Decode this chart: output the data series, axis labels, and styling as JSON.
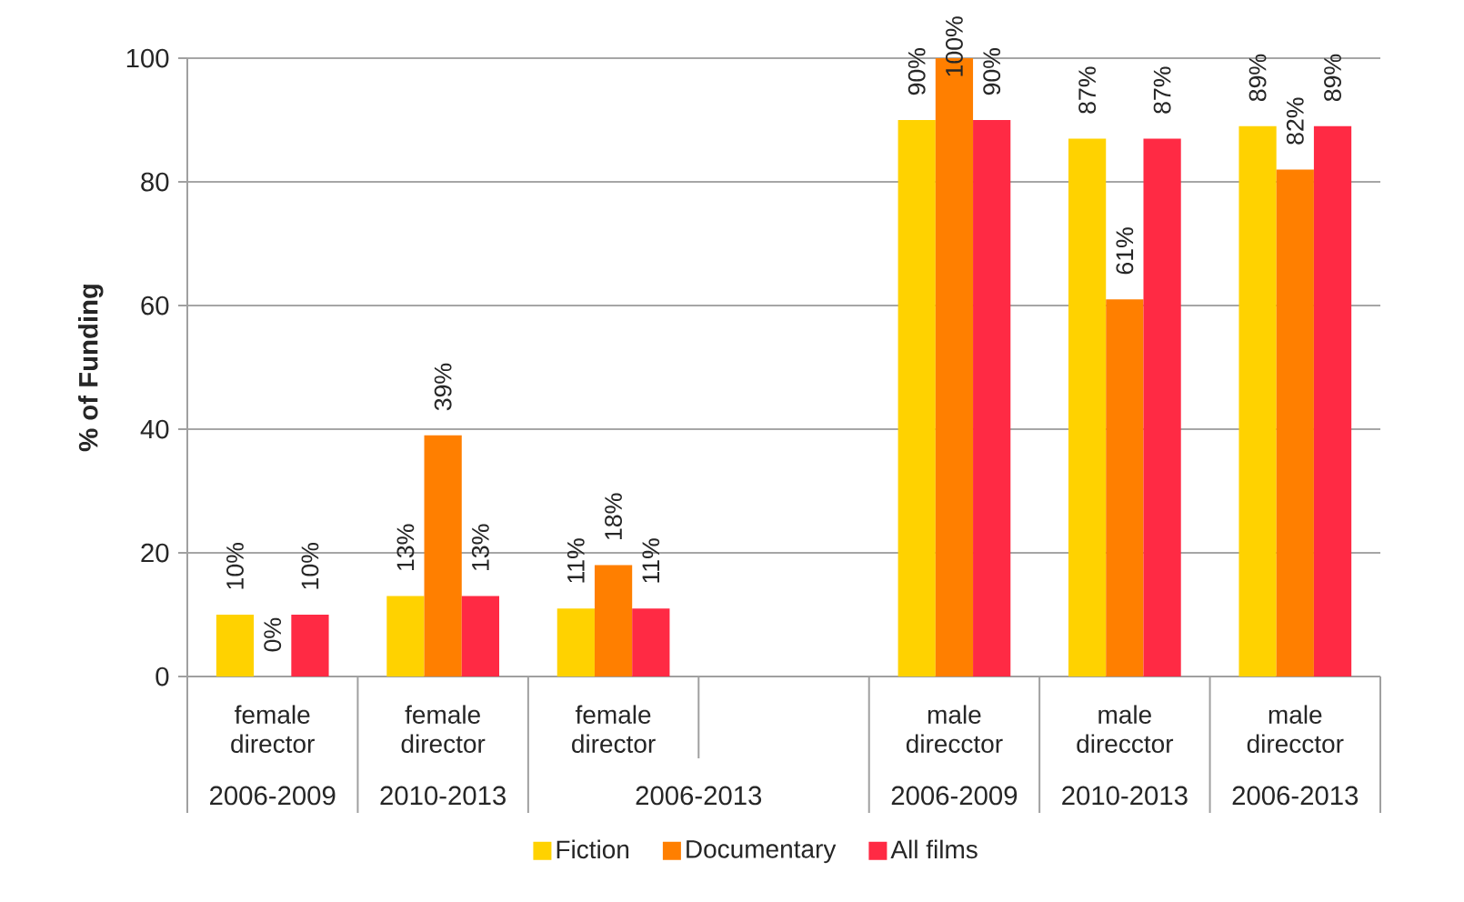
{
  "chart_data": {
    "type": "bar",
    "ylabel": "% of Funding",
    "categories": [
      "female director",
      "female director",
      "female director",
      null,
      "male direcctor",
      "male direcctor",
      "male direcctor"
    ],
    "annotations": [
      "2006-2009",
      "2010-2013",
      "2006-2013",
      "2006-2009",
      "2010-2013",
      "2006-2013"
    ],
    "series": [
      {
        "name": "Fiction",
        "color": "#ffd200",
        "values": [
          10,
          13,
          11,
          null,
          90,
          87,
          89
        ],
        "value_labels": [
          "10%",
          "13%",
          "11%",
          null,
          "90%",
          "87%",
          "89%"
        ]
      },
      {
        "name": "Documentary",
        "color": "#ff7f00",
        "values": [
          0,
          39,
          18,
          null,
          100,
          61,
          82
        ],
        "value_labels": [
          "0%",
          "39%",
          "18%",
          null,
          "100%",
          "61%",
          "82%"
        ]
      },
      {
        "name": "All films",
        "color": "#ff2a44",
        "values": [
          10,
          13,
          11,
          null,
          90,
          87,
          89
        ],
        "value_labels": [
          "10%",
          "13%",
          "11%",
          null,
          "90%",
          "87%",
          "89%"
        ]
      }
    ],
    "ylim": [
      0,
      100
    ],
    "yticks": [
      0,
      20,
      40,
      60,
      80,
      100
    ],
    "grid": "y",
    "legend": "bottom"
  }
}
